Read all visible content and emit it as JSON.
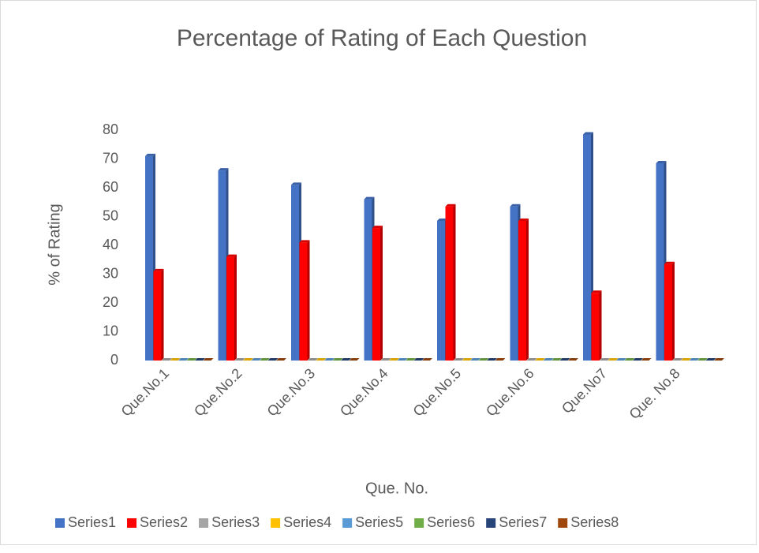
{
  "chart_data": {
    "type": "bar3d",
    "title": "Percentage of Rating of Each Question",
    "x_label": "Que. No.",
    "y_label": "% of Rating",
    "categories": [
      "Que.No.1",
      "Que.No.2",
      "Que.No.3",
      "Que.No.4",
      "Que.No.5",
      "Que.No.6",
      "Que.No7",
      "Que. No.8"
    ],
    "series": [
      {
        "name": "Series1",
        "color": "#4472c4",
        "values": [
          71,
          66,
          61,
          56,
          48.5,
          53.5,
          78.5,
          68.5
        ]
      },
      {
        "name": "Series2",
        "color": "#ff0000",
        "values": [
          31,
          36,
          41,
          46,
          53.5,
          48.5,
          23.5,
          33.5
        ]
      },
      {
        "name": "Series3",
        "color": "#a5a5a5",
        "values": [
          0,
          0,
          0,
          0,
          0,
          0,
          0,
          0
        ]
      },
      {
        "name": "Series4",
        "color": "#ffc000",
        "values": [
          0,
          0,
          0,
          0,
          0,
          0,
          0,
          0
        ]
      },
      {
        "name": "Series5",
        "color": "#5b9bd5",
        "values": [
          0,
          0,
          0,
          0,
          0,
          0,
          0,
          0
        ]
      },
      {
        "name": "Series6",
        "color": "#70ad47",
        "values": [
          0,
          0,
          0,
          0,
          0,
          0,
          0,
          0
        ]
      },
      {
        "name": "Series7",
        "color": "#264478",
        "values": [
          0,
          0,
          0,
          0,
          0,
          0,
          0,
          0
        ]
      },
      {
        "name": "Series8",
        "color": "#9e480e",
        "values": [
          0,
          0,
          0,
          0,
          0,
          0,
          0,
          0
        ]
      }
    ],
    "ylim": [
      0,
      80
    ],
    "yticks": [
      0,
      10,
      20,
      30,
      40,
      50,
      60,
      70,
      80
    ],
    "legend": "bottom"
  }
}
